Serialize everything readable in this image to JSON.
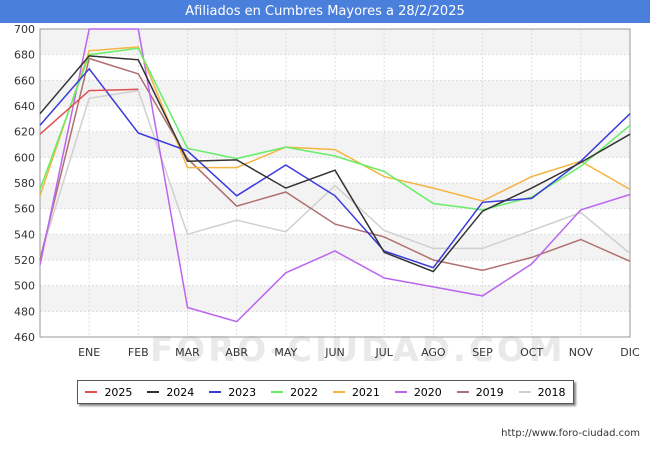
{
  "header": {
    "title": "Afiliados en Cumbres Mayores a 28/2/2025"
  },
  "footer": {
    "url": "http://www.foro-ciudad.com"
  },
  "watermark": "FORO-CIUDAD.COM",
  "chart_data": {
    "type": "line",
    "title": "Afiliados en Cumbres Mayores a 28/2/2025",
    "xlabel": "",
    "ylabel": "",
    "x": [
      "",
      "ENE",
      "FEB",
      "MAR",
      "ABR",
      "MAY",
      "JUN",
      "JUL",
      "AGO",
      "SEP",
      "OCT",
      "NOV",
      "DIC"
    ],
    "ylim": [
      460,
      700
    ],
    "yticks": [
      460,
      480,
      500,
      520,
      540,
      560,
      580,
      600,
      620,
      640,
      660,
      680,
      700
    ],
    "grid": true,
    "legend_position": "bottom",
    "series": [
      {
        "name": "2018",
        "color": "#d0d0d0",
        "values": [
          522,
          646,
          652,
          540,
          551,
          542,
          578,
          543,
          529,
          529,
          543,
          557,
          525
        ]
      },
      {
        "name": "2019",
        "color": "#b07070",
        "values": [
          520,
          677,
          665,
          599,
          562,
          573,
          548,
          538,
          520,
          512,
          522,
          536,
          519
        ]
      },
      {
        "name": "2020",
        "color": "#bb66ee",
        "values": [
          516,
          700,
          700,
          483,
          472,
          510,
          527,
          506,
          499,
          492,
          517,
          559,
          571
        ]
      },
      {
        "name": "2021",
        "color": "#f5b540",
        "values": [
          570,
          683,
          686,
          592,
          592,
          608,
          606,
          585,
          576,
          566,
          585,
          597,
          575
        ]
      },
      {
        "name": "2022",
        "color": "#66ee66",
        "values": [
          575,
          680,
          685,
          607,
          599,
          608,
          601,
          589,
          564,
          559,
          569,
          593,
          625
        ]
      },
      {
        "name": "2023",
        "color": "#3a3adc",
        "values": [
          625,
          669,
          619,
          605,
          570,
          594,
          570,
          527,
          514,
          565,
          568,
          597,
          634
        ]
      },
      {
        "name": "2024",
        "color": "#333333",
        "values": [
          634,
          679,
          676,
          597,
          598,
          576,
          590,
          526,
          511,
          558,
          576,
          596,
          618
        ]
      },
      {
        "name": "2025",
        "color": "#e05050",
        "values": [
          618,
          652,
          653,
          null,
          null,
          null,
          null,
          null,
          null,
          null,
          null,
          null,
          null
        ]
      }
    ]
  }
}
